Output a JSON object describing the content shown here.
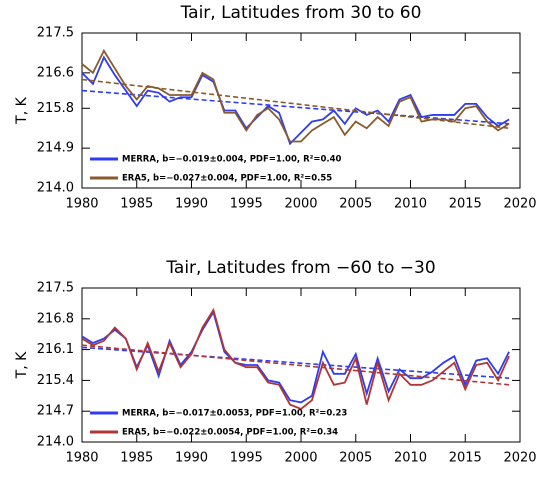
{
  "chart_data": [
    {
      "type": "line",
      "title": "Tair, Latitudes from 30 to 60",
      "ylabel": "T, K",
      "x": [
        1980,
        1981,
        1982,
        1983,
        1984,
        1985,
        1986,
        1987,
        1988,
        1989,
        1990,
        1991,
        1992,
        1993,
        1994,
        1995,
        1996,
        1997,
        1998,
        1999,
        2000,
        2001,
        2002,
        2003,
        2004,
        2005,
        2006,
        2007,
        2008,
        2009,
        2010,
        2011,
        2012,
        2013,
        2014,
        2015,
        2016,
        2017,
        2018,
        2019
      ],
      "xlim": [
        1980,
        2020
      ],
      "xticks": [
        1980,
        1985,
        1990,
        1995,
        2000,
        2005,
        2010,
        2015,
        2020
      ],
      "ylim": [
        214.0,
        217.5
      ],
      "yticks": [
        {
          "value": 214,
          "label": "214.0"
        },
        214.9,
        215.8,
        216.6,
        217.5
      ],
      "trend_x": [
        1980,
        2019
      ],
      "legend": "lower left",
      "series": [
        {
          "name": "MERRA, b=−0.019±0.004, PDF=1.00, R²=0.40",
          "color": "#2f3cf0",
          "values": [
            216.6,
            216.35,
            216.95,
            216.55,
            216.2,
            215.85,
            216.2,
            216.15,
            215.95,
            216.05,
            216.05,
            216.55,
            216.4,
            215.75,
            215.75,
            215.35,
            215.6,
            215.85,
            215.7,
            215.0,
            215.25,
            215.5,
            215.55,
            215.75,
            215.45,
            215.8,
            215.65,
            215.75,
            215.5,
            216.0,
            216.1,
            215.6,
            215.65,
            215.65,
            215.65,
            215.9,
            215.9,
            215.6,
            215.4,
            215.55
          ],
          "trend": [
            216.2,
            215.45
          ]
        },
        {
          "name": "ERA5,  b=−0.027±0.004, PDF=1.00, R²=0.55",
          "color": "#8a5a2a",
          "values": [
            216.8,
            216.6,
            217.1,
            216.7,
            216.3,
            216.0,
            216.3,
            216.25,
            216.1,
            216.1,
            216.1,
            216.6,
            216.45,
            215.7,
            215.7,
            215.3,
            215.65,
            215.8,
            215.55,
            215.05,
            215.05,
            215.3,
            215.45,
            215.6,
            215.2,
            215.5,
            215.35,
            215.6,
            215.4,
            215.95,
            216.05,
            215.5,
            215.55,
            215.55,
            215.5,
            215.8,
            215.85,
            215.5,
            215.3,
            215.45
          ],
          "trend": [
            216.45,
            215.35
          ]
        }
      ]
    },
    {
      "type": "line",
      "title": "Tair, Latitudes from −60 to −30",
      "ylabel": "T, K",
      "x": [
        1980,
        1981,
        1982,
        1983,
        1984,
        1985,
        1986,
        1987,
        1988,
        1989,
        1990,
        1991,
        1992,
        1993,
        1994,
        1995,
        1996,
        1997,
        1998,
        1999,
        2000,
        2001,
        2002,
        2003,
        2004,
        2005,
        2006,
        2007,
        2008,
        2009,
        2010,
        2011,
        2012,
        2013,
        2014,
        2015,
        2016,
        2017,
        2018,
        2019
      ],
      "xlim": [
        1980,
        2020
      ],
      "xticks": [
        1980,
        1985,
        1990,
        1995,
        2000,
        2005,
        2010,
        2015,
        2020
      ],
      "ylim": [
        214.0,
        217.5
      ],
      "yticks": [
        {
          "value": 214,
          "label": "214.0"
        },
        214.7,
        215.4,
        216.1,
        216.8,
        217.5
      ],
      "trend_x": [
        1980,
        2019
      ],
      "legend": "lower left",
      "series": [
        {
          "name": "MERRA, b=−0.017±0.0053, PDF=1.00, R²=0.23",
          "color": "#2f3cf0",
          "values": [
            216.4,
            216.25,
            216.35,
            216.55,
            216.35,
            215.7,
            216.2,
            215.5,
            216.3,
            215.75,
            216.05,
            216.55,
            216.95,
            216.05,
            215.8,
            215.75,
            215.75,
            215.4,
            215.35,
            214.95,
            214.9,
            215.05,
            216.05,
            215.55,
            215.55,
            216.0,
            215.1,
            215.9,
            215.15,
            215.65,
            215.45,
            215.45,
            215.6,
            215.8,
            215.95,
            215.3,
            215.85,
            215.9,
            215.55,
            216.05
          ],
          "trend": [
            216.15,
            215.45
          ]
        },
        {
          "name": "ERA5,  b=−0.022±0.0054, PDF=1.00, R²=0.34",
          "color": "#b03535",
          "values": [
            216.35,
            216.2,
            216.3,
            216.6,
            216.35,
            215.65,
            216.25,
            215.6,
            216.25,
            215.7,
            216.0,
            216.6,
            217.0,
            216.1,
            215.8,
            215.7,
            215.7,
            215.35,
            215.3,
            214.85,
            214.75,
            214.95,
            215.8,
            215.3,
            215.35,
            215.9,
            214.85,
            215.8,
            214.95,
            215.55,
            215.3,
            215.3,
            215.4,
            215.6,
            215.8,
            215.2,
            215.75,
            215.8,
            215.4,
            215.95
          ],
          "trend": [
            216.2,
            215.3
          ]
        }
      ]
    }
  ]
}
